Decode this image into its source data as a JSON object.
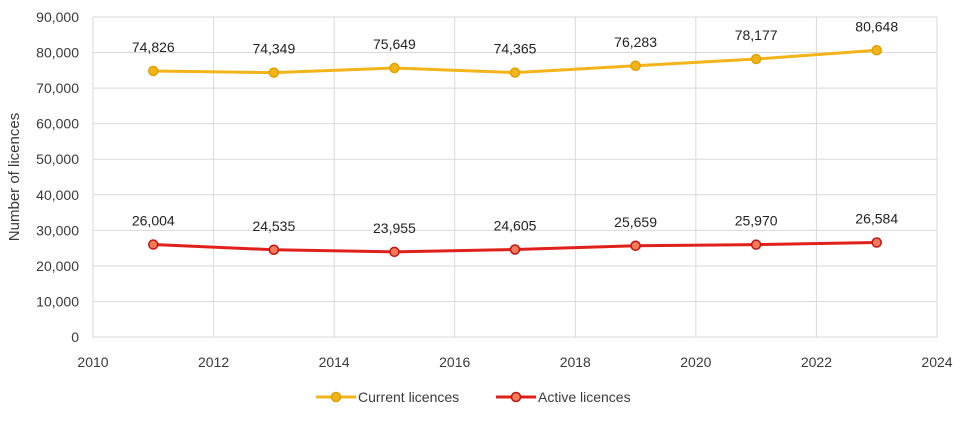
{
  "chart_data": {
    "type": "line",
    "title": "",
    "xlabel": "",
    "ylabel": "Number of licences",
    "xlim": [
      2010,
      2024
    ],
    "ylim": [
      0,
      90000
    ],
    "x_ticks": [
      2010,
      2012,
      2014,
      2016,
      2018,
      2020,
      2022,
      2024
    ],
    "y_ticks": [
      0,
      10000,
      20000,
      30000,
      40000,
      50000,
      60000,
      70000,
      80000,
      90000
    ],
    "x_tick_labels": [
      "2010",
      "2012",
      "2014",
      "2016",
      "2018",
      "2020",
      "2022",
      "2024"
    ],
    "y_tick_labels": [
      "0",
      "10,000",
      "20,000",
      "30,000",
      "40,000",
      "50,000",
      "60,000",
      "70,000",
      "80,000",
      "90,000"
    ],
    "grid": true,
    "legend_position": "bottom",
    "x": [
      2011,
      2013,
      2015,
      2017,
      2019,
      2021,
      2023
    ],
    "series": [
      {
        "name": "Current licences",
        "color": "#F2B418",
        "marker_edge": "#E0A100",
        "values": [
          74826,
          74349,
          75649,
          74365,
          76283,
          78177,
          80648
        ],
        "labels": [
          "74,826",
          "74,349",
          "75,649",
          "74,365",
          "76,283",
          "78,177",
          "80,648"
        ]
      },
      {
        "name": "Active licences",
        "color": "#E0201B",
        "marker_edge": "#C0150F",
        "marker_fill": "#F07A5A",
        "values": [
          26004,
          24535,
          23955,
          24605,
          25659,
          25970,
          26584
        ],
        "labels": [
          "26,004",
          "24,535",
          "23,955",
          "24,605",
          "25,659",
          "25,970",
          "26,584"
        ]
      }
    ]
  }
}
